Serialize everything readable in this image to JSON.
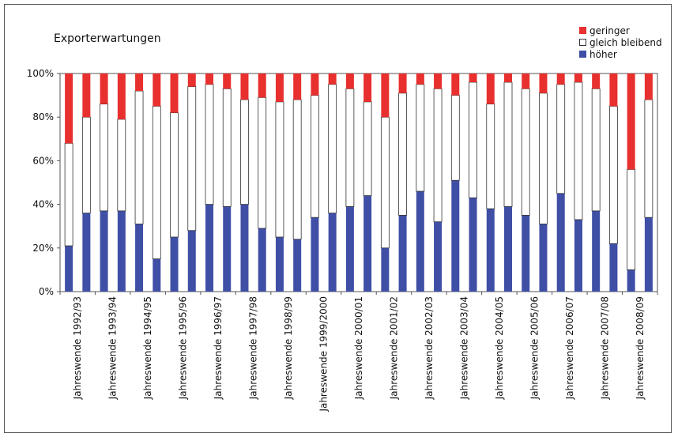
{
  "chart_data": {
    "type": "bar",
    "stacked": true,
    "title": "Exporterwartungen",
    "xlabel": "",
    "ylabel": "",
    "ylim": [
      0,
      100
    ],
    "y_ticks": [
      "0%",
      "20%",
      "40%",
      "60%",
      "80%",
      "100%"
    ],
    "category_labels": [
      "Jahreswende 1992/93",
      "Jahreswende 1993/94",
      "Jahreswende 1994/95",
      "Jahreswende 1995/96",
      "Jahreswende 1996/97",
      "Jahreswende 1997/98",
      "Jahreswende 1998/99",
      "Jahreswende 1999/2000",
      "Jahreswende 2000/01",
      "Jahreswende 2001/02",
      "Jahreswende 2002/03",
      "Jahreswende 2003/04",
      "Jahreswende 2004/05",
      "Jahreswende 2005/06",
      "Jahreswende 2006/07",
      "Jahreswende 2007/08",
      "Jahreswende 2008/09"
    ],
    "bar_count": 34,
    "legend_position": "top-right",
    "series": [
      {
        "name": "höher",
        "color": "#3f4fa6",
        "values": [
          21,
          36,
          37,
          37,
          31,
          15,
          25,
          28,
          40,
          39,
          40,
          29,
          25,
          24,
          34,
          36,
          39,
          44,
          20,
          35,
          46,
          32,
          51,
          43,
          38,
          39,
          35,
          31,
          45,
          33,
          37,
          22,
          10,
          34
        ]
      },
      {
        "name": "gleich bleibend",
        "color": "#ffffff",
        "values": [
          47,
          44,
          49,
          42,
          61,
          70,
          57,
          66,
          55,
          54,
          48,
          60,
          62,
          64,
          56,
          59,
          54,
          43,
          60,
          56,
          49,
          61,
          39,
          53,
          48,
          57,
          58,
          60,
          50,
          63,
          56,
          63,
          46,
          54
        ]
      },
      {
        "name": "geringer",
        "color": "#e8302e",
        "values": [
          32,
          20,
          14,
          21,
          8,
          15,
          18,
          6,
          5,
          7,
          12,
          11,
          13,
          12,
          10,
          5,
          7,
          13,
          20,
          9,
          5,
          7,
          10,
          4,
          14,
          4,
          7,
          9,
          5,
          4,
          7,
          15,
          44,
          12
        ]
      }
    ]
  }
}
